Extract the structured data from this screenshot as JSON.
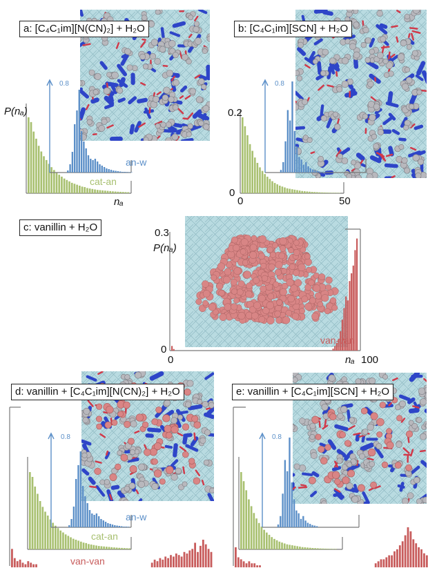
{
  "panels": [
    {
      "id": "a",
      "label": "a: [C₄C₁im][N(CN)₂] + H₂O",
      "ylabel": "P(nₐ)",
      "xlabel": "nₐ",
      "inset_tick": "0.8",
      "series_labels": [
        "an-w",
        "cat-an"
      ]
    },
    {
      "id": "b",
      "label": "b: [C₄C₁im][SCN] + H₂O",
      "inset_tick": "0.8",
      "y_ticks": [
        "0.2",
        "0"
      ],
      "x_ticks": [
        "0",
        "50"
      ]
    },
    {
      "id": "c",
      "label": "c: vanillin + H₂O",
      "ylabel": "P(nₐ)",
      "xlabel": "nₐ",
      "y_ticks": [
        "0.3",
        "0"
      ],
      "x_ticks": [
        "0",
        "100"
      ],
      "series_labels": [
        "van-van"
      ]
    },
    {
      "id": "d",
      "label": "d: vanillin + [C₄C₁im][N(CN)₂] + H₂O",
      "inset_tick": "0.8",
      "series_labels": [
        "an-w",
        "cat-an",
        "van-van"
      ]
    },
    {
      "id": "e",
      "label": "e: vanillin + [C₄C₁im][SCN] + H₂O",
      "inset_tick": "0.8"
    }
  ],
  "colors": {
    "cat-an": "#a8c070",
    "an-w": "#5b8fc8",
    "van-van": "#c85c5c",
    "water": "#a9cfd6",
    "anion": "#2e45c8",
    "cation": "#b8b8bd",
    "red": "#d03a4a",
    "vanillin": "#d98585"
  },
  "chart_data": [
    {
      "type": "bar",
      "panel": "a",
      "ylim": [
        0,
        0.25
      ],
      "series": [
        {
          "name": "cat-an",
          "x0": 0,
          "values": [
            0.16,
            0.15,
            0.13,
            0.115,
            0.1,
            0.088,
            0.078,
            0.07,
            0.062,
            0.055,
            0.049,
            0.044,
            0.039,
            0.035,
            0.031,
            0.028,
            0.025,
            0.022,
            0.02,
            0.018,
            0.016,
            0.014,
            0.013,
            0.011,
            0.01,
            0.009,
            0.008,
            0.007,
            0.0065,
            0.006,
            0.0055,
            0.005,
            0.0045,
            0.004,
            0.0036,
            0.0032,
            0.003,
            0.0027,
            0.0024,
            0.0022
          ]
        },
        {
          "name": "an-w",
          "x0": 0,
          "values": [
            0,
            0,
            0,
            0,
            0,
            0,
            0,
            0.003,
            0.012,
            0.03,
            0.07,
            0.09,
            0.12,
            0.06,
            0.045,
            0.035,
            0.025,
            0.02,
            0.018,
            0.02,
            0.016,
            0.012,
            0.01,
            0.008,
            0.006,
            0.005,
            0.004,
            0.003,
            0.0025,
            0.002,
            0.0015,
            0.001,
            0.001,
            0.0008,
            0.0006,
            0.0005
          ]
        }
      ]
    },
    {
      "type": "bar",
      "panel": "b",
      "ylim": [
        0,
        0.25
      ],
      "xlim": [
        0,
        50
      ],
      "series": [
        {
          "name": "cat-an",
          "x0": 0,
          "values": [
            0.17,
            0.15,
            0.13,
            0.11,
            0.095,
            0.08,
            0.068,
            0.058,
            0.05,
            0.043,
            0.037,
            0.032,
            0.027,
            0.023,
            0.02,
            0.017,
            0.015,
            0.013,
            0.011,
            0.01,
            0.009,
            0.008,
            0.007,
            0.006,
            0.005,
            0.0045,
            0.004,
            0.0035,
            0.003,
            0.0027,
            0.0024,
            0.002,
            0.0018,
            0.0016,
            0.0014,
            0.0012,
            0.001,
            0.001,
            0.0009,
            0.0008
          ]
        },
        {
          "name": "an-w",
          "x0": 0,
          "values": [
            0,
            0,
            0,
            0,
            0,
            0,
            0.005,
            0.02,
            0.06,
            0.12,
            0.1,
            0.175,
            0.08,
            0.05,
            0.03,
            0.025,
            0.015,
            0.02,
            0.012,
            0.008,
            0.006,
            0.004,
            0.003,
            0.002,
            0.0015,
            0.001
          ]
        }
      ]
    },
    {
      "type": "bar",
      "panel": "c",
      "ylim": [
        0,
        0.3
      ],
      "xlim": [
        0,
        100
      ],
      "series": [
        {
          "name": "van-van",
          "x": [
            0,
            1,
            88,
            89,
            90,
            91,
            92,
            93,
            94,
            95,
            96,
            97,
            98,
            99,
            100,
            101
          ],
          "values": [
            0.012,
            0.004,
            0.005,
            0.012,
            0.02,
            0.03,
            0.05,
            0.08,
            0.11,
            0.14,
            0.13,
            0.18,
            0.2,
            0.22,
            0.26,
            0.29
          ]
        }
      ]
    },
    {
      "type": "bar",
      "panel": "d",
      "ylim": [
        0,
        0.25
      ],
      "series": [
        {
          "name": "cat-an",
          "x0": 0,
          "values": [
            0.16,
            0.15,
            0.13,
            0.115,
            0.1,
            0.088,
            0.078,
            0.07,
            0.062,
            0.055,
            0.049,
            0.044,
            0.039,
            0.035,
            0.031,
            0.028,
            0.025,
            0.022,
            0.02,
            0.018,
            0.016,
            0.014,
            0.013,
            0.011,
            0.01,
            0.009,
            0.008,
            0.007,
            0.0065,
            0.006,
            0.0055,
            0.005,
            0.0045,
            0.004,
            0.0036,
            0.0032,
            0.003,
            0.0027,
            0.0024,
            0.0022
          ]
        },
        {
          "name": "an-w",
          "x0": 0,
          "values": [
            0,
            0,
            0,
            0,
            0,
            0,
            0,
            0.003,
            0.012,
            0.03,
            0.07,
            0.09,
            0.11,
            0.06,
            0.045,
            0.035,
            0.025,
            0.02,
            0.018,
            0.02,
            0.016,
            0.012,
            0.01,
            0.008,
            0.006,
            0.005,
            0.004,
            0.003,
            0.0025,
            0.002,
            0.0015,
            0.001,
            0.001,
            0.0008
          ]
        },
        {
          "name": "van-van",
          "values": [
            0.012,
            0.006,
            0.004,
            0.005,
            0.003,
            0.002,
            0.004,
            0.003,
            0.002,
            0.002,
            0,
            0,
            0,
            0,
            0,
            0,
            0,
            0,
            0,
            0,
            0,
            0,
            0,
            0,
            0,
            0,
            0,
            0,
            0,
            0,
            0,
            0,
            0,
            0,
            0,
            0,
            0,
            0,
            0,
            0,
            0,
            0,
            0,
            0,
            0,
            0,
            0,
            0,
            0,
            0,
            0,
            0,
            0.003,
            0.005,
            0.004,
            0.006,
            0.005,
            0.007,
            0.006,
            0.008,
            0.007,
            0.009,
            0.008,
            0.007,
            0.01,
            0.009,
            0.011,
            0.012,
            0.016,
            0.01,
            0.014,
            0.018,
            0.015,
            0.012,
            0.01
          ]
        }
      ]
    },
    {
      "type": "bar",
      "panel": "e",
      "ylim": [
        0,
        0.25
      ],
      "series": [
        {
          "name": "cat-an",
          "x0": 0,
          "values": [
            0.17,
            0.15,
            0.13,
            0.11,
            0.095,
            0.08,
            0.068,
            0.058,
            0.05,
            0.043,
            0.037,
            0.032,
            0.027,
            0.023,
            0.02,
            0.017,
            0.015,
            0.013,
            0.011,
            0.01,
            0.009,
            0.008,
            0.007,
            0.006,
            0.005,
            0.0045,
            0.004,
            0.0035,
            0.003,
            0.0027,
            0.0024,
            0.002,
            0.0018,
            0.0016,
            0.0014,
            0.0012,
            0.001,
            0.001
          ]
        },
        {
          "name": "an-w",
          "x0": 0,
          "values": [
            0,
            0,
            0,
            0,
            0,
            0,
            0.005,
            0.02,
            0.06,
            0.12,
            0.1,
            0.16,
            0.08,
            0.05,
            0.03,
            0.025,
            0.015,
            0.02,
            0.012,
            0.008,
            0.006,
            0.004,
            0.003,
            0.002
          ]
        },
        {
          "name": "van-van",
          "values": [
            0.01,
            0.005,
            0.004,
            0.003,
            0.002,
            0.003,
            0.002,
            0.002,
            0.001,
            0.001,
            0,
            0,
            0,
            0,
            0,
            0,
            0,
            0,
            0,
            0,
            0,
            0,
            0,
            0,
            0,
            0,
            0,
            0,
            0,
            0,
            0,
            0,
            0,
            0,
            0,
            0,
            0,
            0,
            0,
            0,
            0,
            0,
            0,
            0,
            0,
            0,
            0,
            0,
            0,
            0,
            0,
            0,
            0.002,
            0.003,
            0.004,
            0.004,
            0.005,
            0.006,
            0.006,
            0.008,
            0.009,
            0.011,
            0.013,
            0.016,
            0.02,
            0.018,
            0.014,
            0.012,
            0.01,
            0.009,
            0.007,
            0.006,
            0.005,
            0.004
          ]
        }
      ]
    }
  ]
}
